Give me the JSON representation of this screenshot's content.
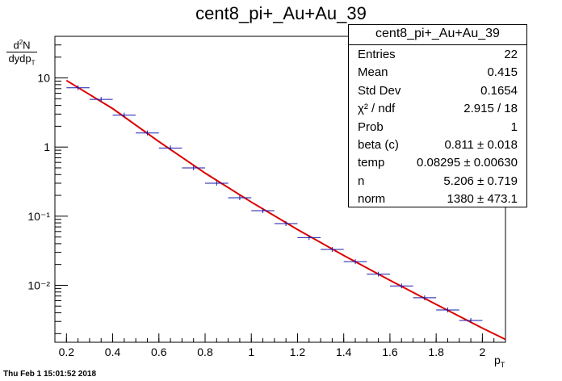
{
  "title": "cent8_pi+_Au+Au_39",
  "footer": {
    "timestamp": "Thu Feb  1 15:01:52 2018"
  },
  "stats_box": {
    "title": "cent8_pi+_Au+Au_39",
    "rows": [
      {
        "key": "Entries",
        "value": "22"
      },
      {
        "key": "Mean",
        "value": "0.415"
      },
      {
        "key": "Std Dev",
        "value": "0.1654"
      },
      {
        "key": "χ² / ndf",
        "value": "2.915 / 18"
      },
      {
        "key": "Prob",
        "value": "1"
      },
      {
        "key": "beta (c)",
        "value": "0.811 ± 0.018"
      },
      {
        "key": "temp",
        "value": "0.08295 ± 0.00630"
      },
      {
        "key": "n",
        "value": "5.206 ± 0.719"
      },
      {
        "key": "norm",
        "value": "1380 ± 473.1"
      }
    ]
  },
  "colors": {
    "data": "#1a1aaa",
    "fit": "#dd0000",
    "axis": "#000000"
  },
  "chart_data": {
    "type": "scatter",
    "title": "cent8_pi+_Au+Au_39",
    "xlabel": "p_T",
    "ylabel": "d²N / dydp_T",
    "xlim": [
      0.15,
      2.1
    ],
    "ylim": [
      0.0015,
      40
    ],
    "yscale": "log",
    "xticks": [
      "0.2",
      "0.4",
      "0.6",
      "0.8",
      "1",
      "1.2",
      "1.4",
      "1.6",
      "1.8",
      "2"
    ],
    "yticks": [
      "10⁻²",
      "10⁻¹",
      "1",
      "10"
    ],
    "grid": false,
    "series": [
      {
        "kind": "points",
        "x": [
          0.25,
          0.35,
          0.45,
          0.55,
          0.65,
          0.75,
          0.85,
          0.95,
          1.05,
          1.15,
          1.25,
          1.35,
          1.45,
          1.55,
          1.65,
          1.75,
          1.85,
          1.95
        ],
        "xerr": 0.05,
        "y": [
          7.2,
          4.9,
          2.9,
          1.6,
          0.97,
          0.5,
          0.3,
          0.185,
          0.12,
          0.078,
          0.049,
          0.033,
          0.022,
          0.0145,
          0.0098,
          0.0066,
          0.0044,
          0.0031
        ]
      },
      {
        "kind": "fit",
        "x": [
          0.2,
          0.4,
          0.6,
          0.8,
          1.0,
          1.2,
          1.4,
          1.6,
          1.8,
          2.0,
          2.1
        ],
        "y": [
          9.2,
          3.6,
          1.2,
          0.42,
          0.16,
          0.064,
          0.027,
          0.0118,
          0.0053,
          0.0024,
          0.00165
        ]
      }
    ]
  }
}
